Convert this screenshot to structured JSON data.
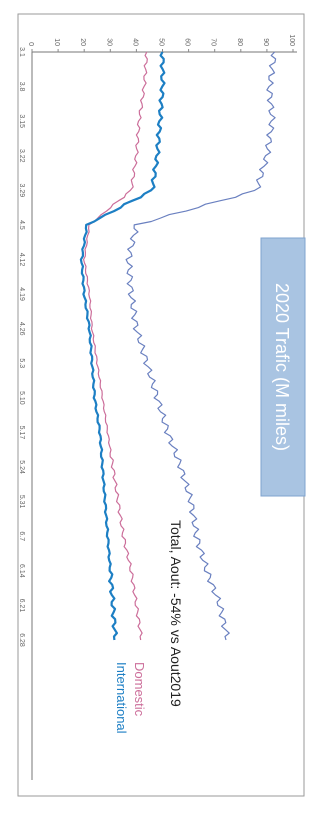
{
  "chart_data": {
    "type": "line",
    "title": "2020 Trafic (M miles)",
    "annotation": "Total, Aout: -54% vs Aout2019",
    "y_ticks": [
      "0",
      "10",
      "20",
      "30",
      "40",
      "50",
      "60",
      "70",
      "80",
      "90",
      "100"
    ],
    "x_ticks": [
      "3.1",
      "3.8",
      "3.15",
      "3.22",
      "3.29",
      "4.5",
      "4.12",
      "4.19",
      "4.26",
      "5.3",
      "5.10",
      "5.17",
      "5.24",
      "5.31",
      "6.7",
      "6.14",
      "6.21",
      "6.28"
    ],
    "ylim": [
      0,
      100
    ],
    "x": [
      1,
      2,
      3,
      4,
      5,
      6,
      7,
      8,
      9,
      10,
      11,
      12,
      13,
      14,
      15,
      16,
      17,
      18
    ],
    "series": [
      {
        "name": "Total",
        "values": [
          93,
          91,
          92,
          90,
          86,
          40,
          37,
          38,
          40,
          44,
          48,
          52,
          57,
          61,
          63,
          67,
          72,
          75
        ]
      },
      {
        "name": "Domestic",
        "values": [
          44,
          43,
          41,
          40,
          38,
          22,
          20,
          22,
          23,
          25,
          27,
          29,
          31,
          33,
          35,
          38,
          40,
          42
        ]
      },
      {
        "name": "International",
        "values": [
          50,
          50,
          49,
          48,
          46,
          21,
          19,
          20,
          22,
          23,
          24,
          26,
          27,
          28,
          29,
          30,
          31,
          32
        ]
      }
    ],
    "legend": [
      {
        "label": "Domestic",
        "color": "#cc6e9a"
      },
      {
        "label": "International",
        "color": "#1d7fc4"
      }
    ],
    "colors": {
      "total": "#6a80c0",
      "domestic": "#cc6e9a",
      "international": "#1d7fc4",
      "title_bg": "#a9c4e2"
    }
  }
}
